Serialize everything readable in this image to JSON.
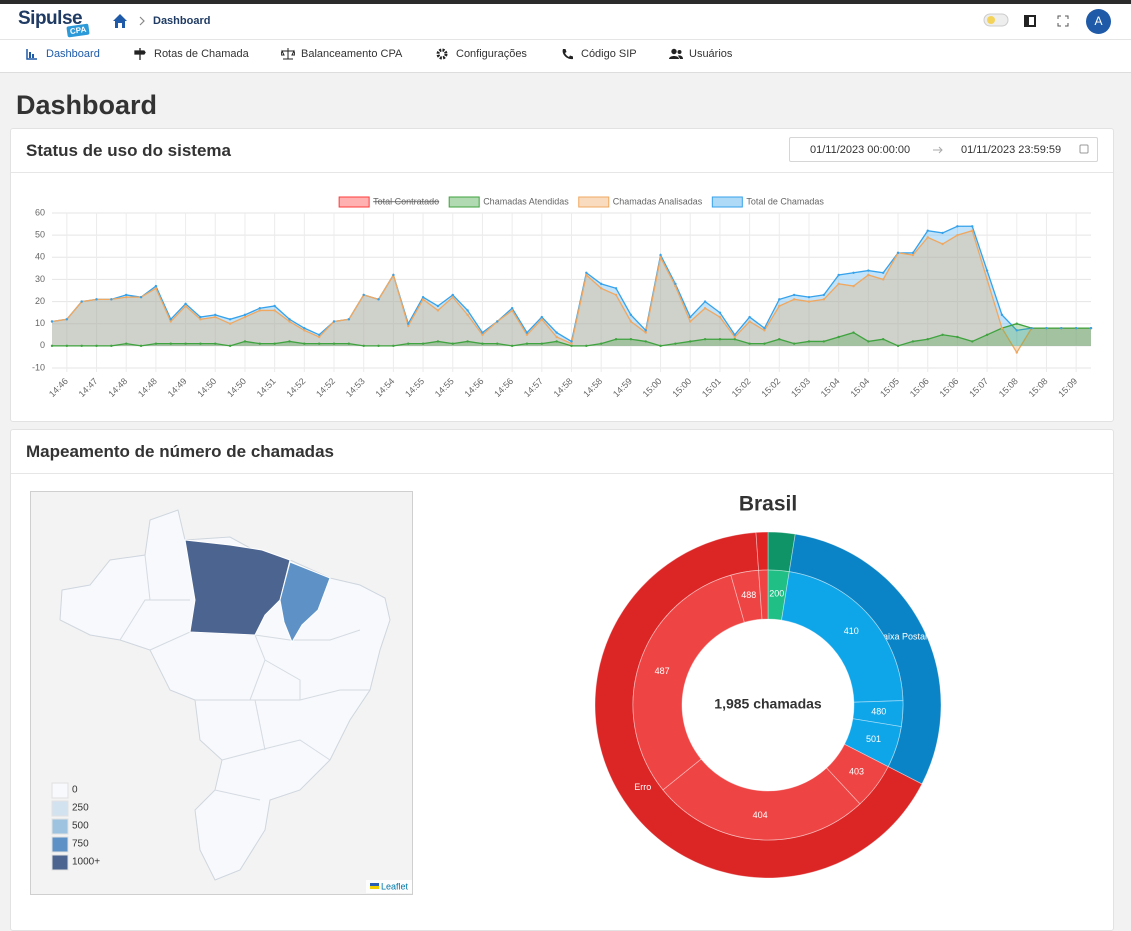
{
  "header": {
    "logo": "Sipulse",
    "logo_badge": "CPA",
    "breadcrumb": "Dashboard",
    "avatar": "A"
  },
  "menu": [
    "Dashboard",
    "Rotas de Chamada",
    "Balanceamento CPA",
    "Configurações",
    "Código SIP",
    "Usuários"
  ],
  "page_title": "Dashboard",
  "cards": [
    {
      "title": "Status de uso do sistema",
      "date_start": "01/11/2023 00:00:00",
      "date_end": "01/11/2023 23:59:59"
    },
    {
      "title": "Mapeamento de número de chamadas"
    }
  ],
  "map": {
    "legend": [
      {
        "value": 0,
        "color": "#f7f9fc"
      },
      {
        "value": 250,
        "color": "#d3e2ef"
      },
      {
        "value": 500,
        "color": "#9ec3e0"
      },
      {
        "value": 750,
        "color": "#5e92c6"
      },
      {
        "value": 1000,
        "label": "1000+",
        "color": "#4b6490"
      }
    ],
    "regions": [
      {
        "value": 1000
      },
      {
        "value": 750
      }
    ],
    "attribution": "Leaflet"
  },
  "chart_data": [
    {
      "type": "line",
      "categories": [
        null,
        "14:46",
        null,
        "14:47",
        null,
        "14:48",
        null,
        "14:48",
        null,
        "14:49",
        null,
        "14:50",
        null,
        "14:50",
        null,
        "14:51",
        null,
        "14:52",
        null,
        "14:52",
        null,
        "14:53",
        null,
        "14:54",
        null,
        "14:55",
        null,
        "14:55",
        null,
        "14:56",
        null,
        "14:56",
        null,
        "14:57",
        null,
        "14:58",
        null,
        "14:58",
        null,
        "14:59",
        null,
        "15:00",
        null,
        "15:00",
        null,
        "15:01",
        null,
        "15:02",
        null,
        "15:02",
        null,
        "15:03",
        null,
        "15:04",
        null,
        "15:04",
        null,
        "15:05",
        null,
        "15:06",
        null,
        "15:06",
        null,
        "15:07",
        null,
        "15:08",
        null,
        "15:08",
        null,
        "15:09",
        null
      ],
      "series": [
        {
          "name": "Total Contratado",
          "color": "#ff3b3b",
          "hidden": true
        },
        {
          "name": "Chamadas Atendidas",
          "color": "#3fa33f",
          "values": [
            0,
            0,
            0,
            0,
            0,
            1,
            0,
            1,
            1,
            1,
            1,
            1,
            0,
            2,
            1,
            1,
            2,
            1,
            1,
            1,
            1,
            0,
            0,
            0,
            1,
            1,
            2,
            1,
            2,
            1,
            1,
            0,
            1,
            1,
            2,
            0,
            0,
            1,
            3,
            3,
            2,
            0,
            1,
            2,
            3,
            3,
            3,
            1,
            1,
            3,
            1,
            2,
            2,
            4,
            6,
            2,
            3,
            0,
            2,
            3,
            5,
            4,
            2,
            5,
            8,
            10,
            8,
            8,
            8,
            8,
            8
          ]
        },
        {
          "name": "Chamadas Analisadas",
          "color": "#f0a860",
          "values": [
            11,
            12,
            20,
            21,
            21,
            22,
            22,
            26,
            11,
            18,
            12,
            13,
            10,
            13,
            16,
            16,
            11,
            7,
            4,
            11,
            12,
            23,
            21,
            32,
            9,
            21,
            16,
            22,
            14,
            5,
            11,
            16,
            5,
            12,
            4,
            1,
            32,
            26,
            23,
            11,
            6,
            40,
            27,
            11,
            17,
            13,
            4,
            11,
            7,
            18,
            21,
            20,
            21,
            28,
            27,
            32,
            30,
            42,
            41,
            49,
            46,
            50,
            52,
            30,
            8,
            -3,
            8,
            8,
            8,
            8,
            8
          ]
        },
        {
          "name": "Total de Chamadas",
          "color": "#36a2eb",
          "values": [
            11,
            12,
            20,
            21,
            21,
            23,
            22,
            27,
            12,
            19,
            13,
            14,
            12,
            14,
            17,
            18,
            12,
            8,
            5,
            11,
            12,
            23,
            21,
            32,
            10,
            22,
            18,
            23,
            16,
            6,
            11,
            17,
            6,
            13,
            6,
            2,
            33,
            28,
            26,
            14,
            7,
            41,
            28,
            13,
            20,
            15,
            5,
            13,
            8,
            21,
            23,
            22,
            23,
            32,
            33,
            34,
            33,
            42,
            42,
            52,
            51,
            54,
            54,
            34,
            14,
            7,
            8,
            8,
            8,
            8,
            8
          ]
        }
      ],
      "ylim": [
        -10,
        60
      ],
      "yticks": [
        -10,
        0,
        10,
        20,
        30,
        40,
        50,
        60
      ],
      "grid": true,
      "legend": "top"
    },
    {
      "type": "sunburst",
      "title": "Brasil",
      "center_label": "1,985 chamadas",
      "inner": {
        "labels": [
          "200",
          "410",
          "480",
          "501",
          "403",
          "404",
          "487",
          "488",
          null
        ],
        "values": [
          50,
          436,
          61,
          99,
          110,
          518,
          623,
          66,
          22
        ],
        "colors": [
          "#1fbf86",
          "#0ea5e9",
          "#0ea5e9",
          "#0ea5e9",
          "#ef4444",
          "#ef4444",
          "#ef4444",
          "#ef4444",
          "#ef4444"
        ]
      },
      "outer": {
        "labels": [
          null,
          "Caixa Postal",
          "Erro",
          null
        ],
        "values": [
          50,
          596,
          1317,
          22
        ],
        "colors": [
          "#0f9467",
          "#0a84c6",
          "#dc2626",
          "#e02424"
        ]
      }
    }
  ]
}
